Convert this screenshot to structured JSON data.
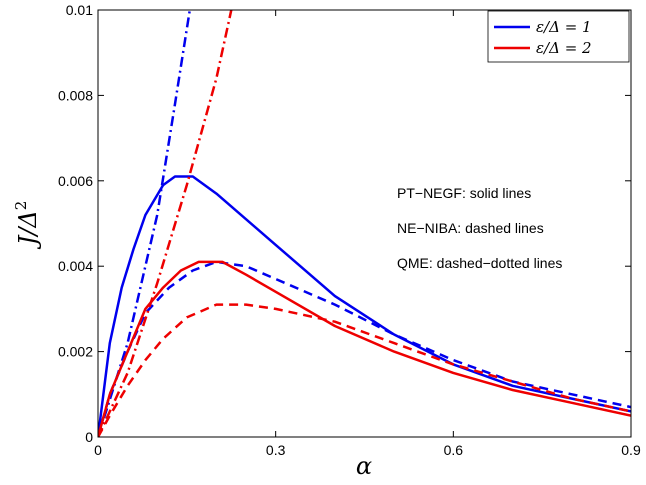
{
  "chart_data": {
    "type": "line",
    "xlabel": "α",
    "ylabel_main": "J/Δ",
    "ylabel_exp": "2",
    "xlim": [
      0,
      0.9
    ],
    "ylim": [
      0,
      0.01
    ],
    "x_ticks": [
      0,
      0.3,
      0.6,
      0.9
    ],
    "x_tick_labels": [
      "0",
      "0.3",
      "0.6",
      "0.9"
    ],
    "y_ticks": [
      0,
      0.002,
      0.004,
      0.006,
      0.008,
      0.01
    ],
    "y_tick_labels": [
      "0",
      "0.002",
      "0.004",
      "0.006",
      "0.008",
      "0.01"
    ],
    "grid": false,
    "legend_position": "top-right",
    "legend": [
      {
        "label": "ε/Δ = 1",
        "color": "#0000ee"
      },
      {
        "label": "ε/Δ = 2",
        "color": "#ee0000"
      }
    ],
    "annotations": [
      "PT−NEGF: solid lines",
      "NE−NIBA: dashed lines",
      "QME: dashed−dotted lines"
    ],
    "series": [
      {
        "style": "solid",
        "color": "#0000ee",
        "x": [
          0,
          0.02,
          0.04,
          0.06,
          0.08,
          0.11,
          0.13,
          0.16,
          0.2,
          0.3,
          0.4,
          0.5,
          0.6,
          0.7,
          0.8,
          0.9
        ],
        "y": [
          0,
          0.0022,
          0.0035,
          0.0044,
          0.0052,
          0.0059,
          0.0061,
          0.0061,
          0.0057,
          0.0045,
          0.0033,
          0.0024,
          0.0017,
          0.0012,
          0.0009,
          0.0006
        ]
      },
      {
        "style": "dashed",
        "color": "#0000ee",
        "x": [
          0,
          0.02,
          0.05,
          0.08,
          0.12,
          0.16,
          0.2,
          0.25,
          0.3,
          0.4,
          0.5,
          0.6,
          0.7,
          0.8,
          0.9
        ],
        "y": [
          0,
          0.001,
          0.002,
          0.0029,
          0.0035,
          0.0039,
          0.0041,
          0.004,
          0.0037,
          0.0031,
          0.0024,
          0.0018,
          0.0013,
          0.001,
          0.0007
        ]
      },
      {
        "style": "dashdot",
        "color": "#0000ee",
        "x": [
          0,
          0.05,
          0.1,
          0.13,
          0.155
        ],
        "y": [
          0,
          0.0022,
          0.0052,
          0.0078,
          0.01
        ]
      },
      {
        "style": "solid",
        "color": "#ee0000",
        "x": [
          0,
          0.02,
          0.05,
          0.08,
          0.11,
          0.14,
          0.17,
          0.21,
          0.25,
          0.3,
          0.4,
          0.5,
          0.6,
          0.7,
          0.8,
          0.9
        ],
        "y": [
          0,
          0.001,
          0.002,
          0.003,
          0.0035,
          0.0039,
          0.0041,
          0.0041,
          0.0038,
          0.0034,
          0.0026,
          0.002,
          0.0015,
          0.0011,
          0.0008,
          0.0005
        ]
      },
      {
        "style": "dashed",
        "color": "#ee0000",
        "x": [
          0,
          0.02,
          0.05,
          0.08,
          0.11,
          0.15,
          0.2,
          0.25,
          0.3,
          0.4,
          0.5,
          0.6,
          0.7,
          0.8,
          0.9
        ],
        "y": [
          0,
          0.0005,
          0.0012,
          0.0018,
          0.0023,
          0.0028,
          0.0031,
          0.0031,
          0.003,
          0.0027,
          0.0022,
          0.0017,
          0.0013,
          0.0009,
          0.0006
        ]
      },
      {
        "style": "dashdot",
        "color": "#ee0000",
        "x": [
          0,
          0.05,
          0.1,
          0.15,
          0.2,
          0.225
        ],
        "y": [
          0,
          0.0015,
          0.0036,
          0.0059,
          0.0084,
          0.01
        ]
      }
    ]
  }
}
